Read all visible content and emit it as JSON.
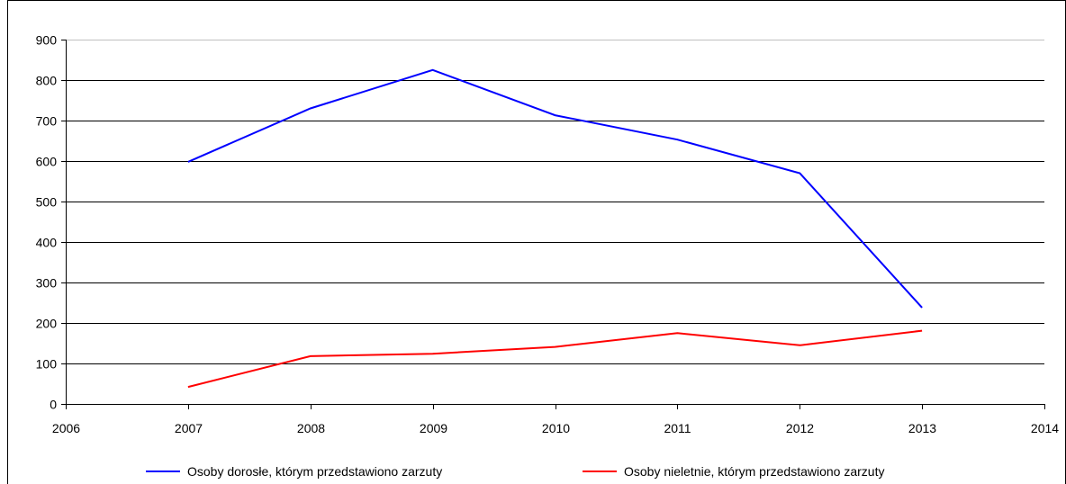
{
  "chart_data": {
    "type": "line",
    "title": "",
    "xlabel": "",
    "ylabel": "",
    "xlim": [
      2006,
      2014
    ],
    "ylim": [
      0,
      900
    ],
    "x_ticks": [
      2006,
      2007,
      2008,
      2009,
      2010,
      2011,
      2012,
      2013,
      2014
    ],
    "y_ticks": [
      0,
      100,
      200,
      300,
      400,
      500,
      600,
      700,
      800,
      900
    ],
    "grid": "horizontal",
    "legend_position": "bottom",
    "x": [
      2007,
      2008,
      2009,
      2010,
      2011,
      2012,
      2013
    ],
    "series": [
      {
        "name": "Osoby dorosłe, którym przedstawiono zarzuty",
        "color": "#0000ff",
        "values": [
          598,
          730,
          825,
          713,
          653,
          570,
          238
        ]
      },
      {
        "name": "Osoby nieletnie, którym przedstawiono zarzuty",
        "color": "#ff0000",
        "values": [
          42,
          118,
          124,
          141,
          175,
          145,
          181
        ]
      }
    ]
  }
}
